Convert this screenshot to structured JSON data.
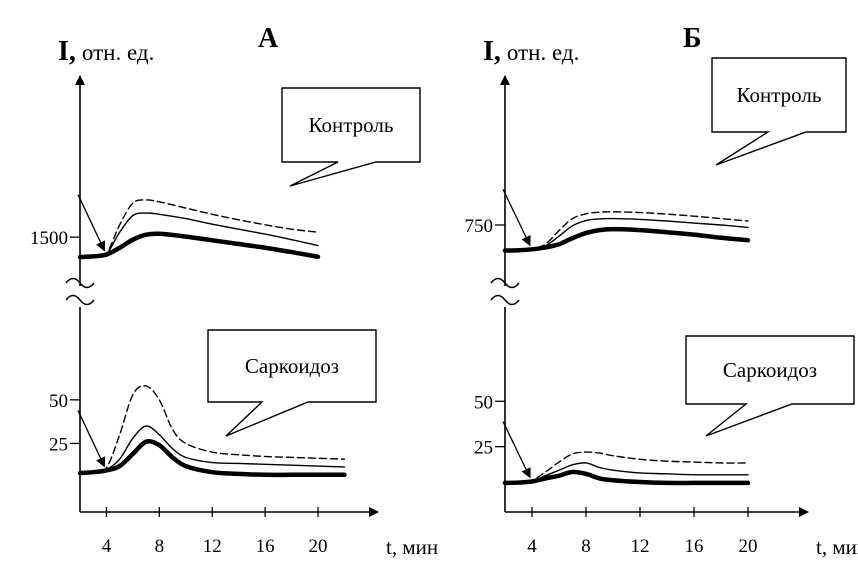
{
  "chart_data": [
    {
      "type": "line",
      "panel": "А",
      "ylabel_main": "I,",
      "ylabel_unit": "отн. ед.",
      "xlabel": "t, мин",
      "x_ticks": [
        "4",
        "8",
        "12",
        "16",
        "20"
      ],
      "xlim": [
        2,
        22
      ],
      "axis_break": true,
      "upper": {
        "callout": "Контроль",
        "y_ticks": [
          {
            "value": 1500,
            "label": "1500"
          }
        ],
        "ylim": [
          1100,
          2100
        ],
        "x": [
          2,
          3,
          4,
          5,
          6,
          7,
          8,
          10,
          12,
          14,
          16,
          18,
          20
        ],
        "series": [
          {
            "style": "thick",
            "values": [
              1180,
              1190,
              1220,
              1330,
              1460,
              1540,
              1555,
              1510,
              1450,
              1390,
              1330,
              1260,
              1185
            ]
          },
          {
            "style": "thin",
            "values": [
              1180,
              1190,
              1230,
              1580,
              1850,
              1890,
              1870,
              1800,
              1710,
              1630,
              1550,
              1460,
              1365
            ]
          },
          {
            "style": "dashed",
            "values": [
              1180,
              1190,
              1240,
              1700,
              2050,
              2100,
              2070,
              1970,
              1870,
              1780,
              1700,
              1630,
              1580
            ]
          }
        ]
      },
      "lower": {
        "callout": "Саркоидоз",
        "y_ticks": [
          {
            "value": 50,
            "label": "50"
          },
          {
            "value": 25,
            "label": "25"
          }
        ],
        "ylim": [
          0,
          70
        ],
        "x": [
          2,
          3,
          4,
          5,
          6,
          7,
          8,
          9,
          10,
          12,
          14,
          16,
          18,
          20,
          22
        ],
        "series": [
          {
            "style": "thick",
            "values": [
              8,
              8.5,
              9.5,
              12,
              19,
              26,
              24,
              17,
              12,
              8.5,
              7.5,
              7,
              7,
              7,
              7
            ]
          },
          {
            "style": "thin",
            "values": [
              8,
              8.5,
              10,
              16,
              28,
              35,
              30,
              22,
              17,
              14,
              13.5,
              13,
              12.5,
              12,
              11.5
            ]
          },
          {
            "style": "dashed",
            "values": [
              8,
              8.5,
              11,
              30,
              53,
              58,
              50,
              33,
              25,
              20,
              18.5,
              17.5,
              17,
              16.5,
              16
            ]
          }
        ]
      }
    },
    {
      "type": "line",
      "panel": "Б",
      "ylabel_main": "I,",
      "ylabel_unit": "отн. ед.",
      "xlabel": "t, мин",
      "x_ticks": [
        "4",
        "8",
        "12",
        "16",
        "20"
      ],
      "xlim": [
        2,
        22
      ],
      "axis_break": true,
      "upper": {
        "callout": "Контроль",
        "y_ticks": [
          {
            "value": 750,
            "label": "750"
          }
        ],
        "ylim": [
          550,
          1000
        ],
        "x": [
          2,
          3,
          4,
          5,
          6,
          7,
          8,
          9,
          10,
          12,
          14,
          16,
          18,
          20
        ],
        "series": [
          {
            "style": "thick",
            "values": [
              590,
              592,
              598,
              610,
              630,
              668,
              700,
              718,
              724,
              718,
              705,
              690,
              670,
              655
            ]
          },
          {
            "style": "thin",
            "values": [
              590,
              592,
              600,
              620,
              680,
              745,
              778,
              788,
              790,
              785,
              775,
              762,
              750,
              735
            ]
          },
          {
            "style": "dashed",
            "values": [
              590,
              592,
              602,
              630,
              715,
              790,
              820,
              830,
              832,
              828,
              818,
              805,
              790,
              775
            ]
          }
        ]
      },
      "lower": {
        "callout": "Саркоидоз",
        "y_ticks": [
          {
            "value": 50,
            "label": "50"
          },
          {
            "value": 25,
            "label": "25"
          }
        ],
        "ylim": [
          0,
          70
        ],
        "x": [
          2,
          3,
          4,
          5,
          6,
          7,
          8,
          9,
          10,
          12,
          14,
          16,
          18,
          20
        ],
        "series": [
          {
            "style": "thick",
            "values": [
              5,
              5.2,
              5.8,
              7.5,
              9,
              11,
              10,
              7.5,
              6.5,
              5.5,
              5,
              5,
              5,
              5
            ]
          },
          {
            "style": "thin",
            "values": [
              5,
              5.2,
              6,
              9,
              12,
              15,
              16,
              13.5,
              12,
              10.5,
              10,
              9.5,
              9.5,
              9.5
            ]
          },
          {
            "style": "dashed",
            "values": [
              5,
              5.2,
              6.5,
              11,
              16.5,
              21,
              22,
              21.5,
              20,
              18,
              17,
              16.5,
              16,
              16
            ]
          }
        ]
      }
    }
  ]
}
